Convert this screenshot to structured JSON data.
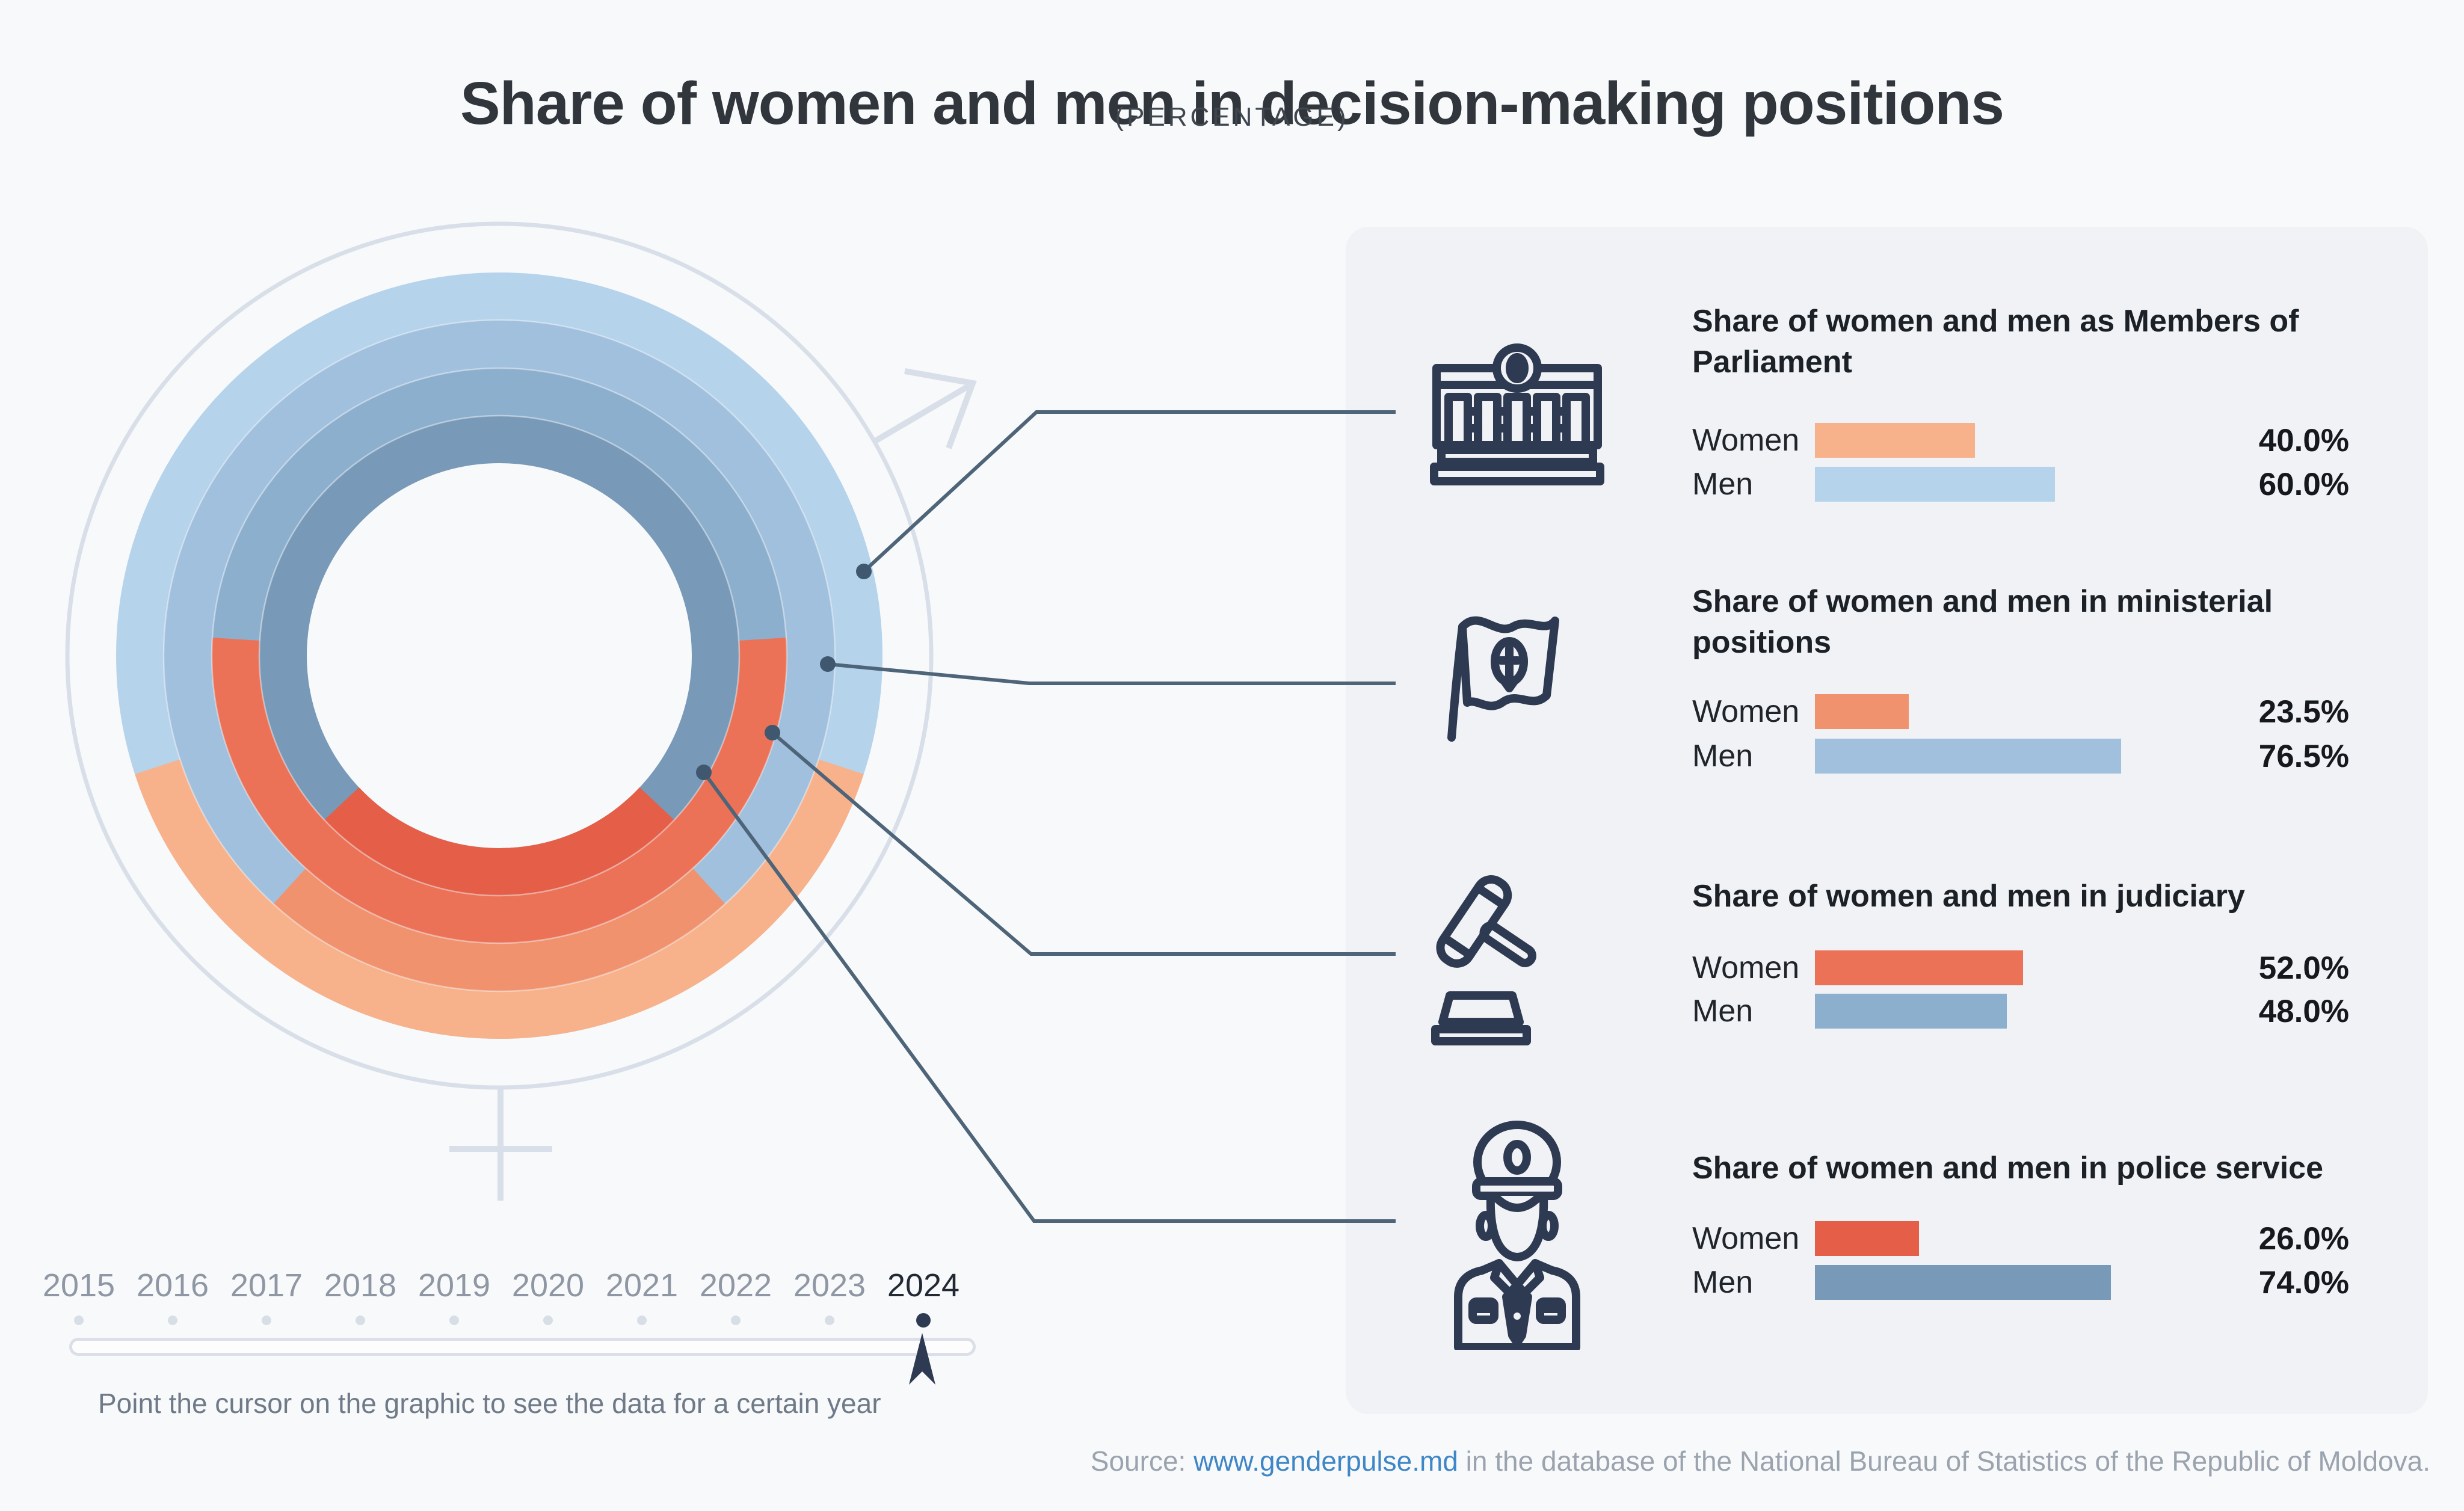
{
  "header": {
    "title": "Share of women and men in decision-making positions",
    "subtitle": "(PERCENTAGE)"
  },
  "chart_data": {
    "type": "donut",
    "subtype": "nested-rings-gender-symbol",
    "description": "Four concentric rings; orange arc (centered at bottom) = women share, blue remainder = men share. Outermost ring = Parliament, then ministerial, judiciary, police (innermost). Outer thin circle carries female (bottom cross) and male (upper-right arrow) symbol decorations.",
    "year": "2024",
    "unit": "percent",
    "legend": {
      "women": "Women",
      "men": "Men"
    },
    "categories": [
      {
        "id": "parliament",
        "title": "Share of women and men as Members of Parliament",
        "icon": "parliament-building-icon",
        "women": 40.0,
        "men": 60.0,
        "women_label": "40.0%",
        "men_label": "60.0%",
        "women_color": "#f8b28b",
        "men_color": "#b6d3ec"
      },
      {
        "id": "ministerial",
        "title": "Share of women and men in ministerial positions",
        "icon": "moldova-flag-icon",
        "women": 23.5,
        "men": 76.5,
        "women_label": "23.5%",
        "men_label": "76.5%",
        "women_color": "#f1926f",
        "men_color": "#a0c0dd"
      },
      {
        "id": "judiciary",
        "title": "Share of women and men in judiciary",
        "icon": "gavel-icon",
        "women": 52.0,
        "men": 48.0,
        "women_label": "52.0%",
        "men_label": "48.0%",
        "women_color": "#ec7257",
        "men_color": "#8dafce"
      },
      {
        "id": "police",
        "title": "Share of women and men in police service",
        "icon": "police-officer-icon",
        "women": 26.0,
        "men": 74.0,
        "women_label": "26.0%",
        "men_label": "74.0%",
        "women_color": "#e45e48",
        "men_color": "#789ab8"
      }
    ]
  },
  "timeline": {
    "years": [
      "2015",
      "2016",
      "2017",
      "2018",
      "2019",
      "2020",
      "2021",
      "2022",
      "2023",
      "2024"
    ],
    "selected": "2024",
    "hint": "Point the cursor on the graphic to see the data for a certain year"
  },
  "source": {
    "prefix": "Source: ",
    "link": "www.genderpulse.md",
    "suffix": " in the database of the National Bureau of Statistics of the Republic of Moldova."
  },
  "colors": {
    "page_background": "#f8f9fa",
    "card_background": "#f0f2f5",
    "icon_navy": "#2e3a52",
    "leader_line": "#4e6478",
    "decoration_gray": "#d9dfe8",
    "link_blue": "#3e86c5",
    "title_text": "#31363d",
    "year_gray": "#8e97a3",
    "selected_year": "#222934",
    "hint_gray": "#6f7a88",
    "source_gray": "#9aa3ae"
  }
}
